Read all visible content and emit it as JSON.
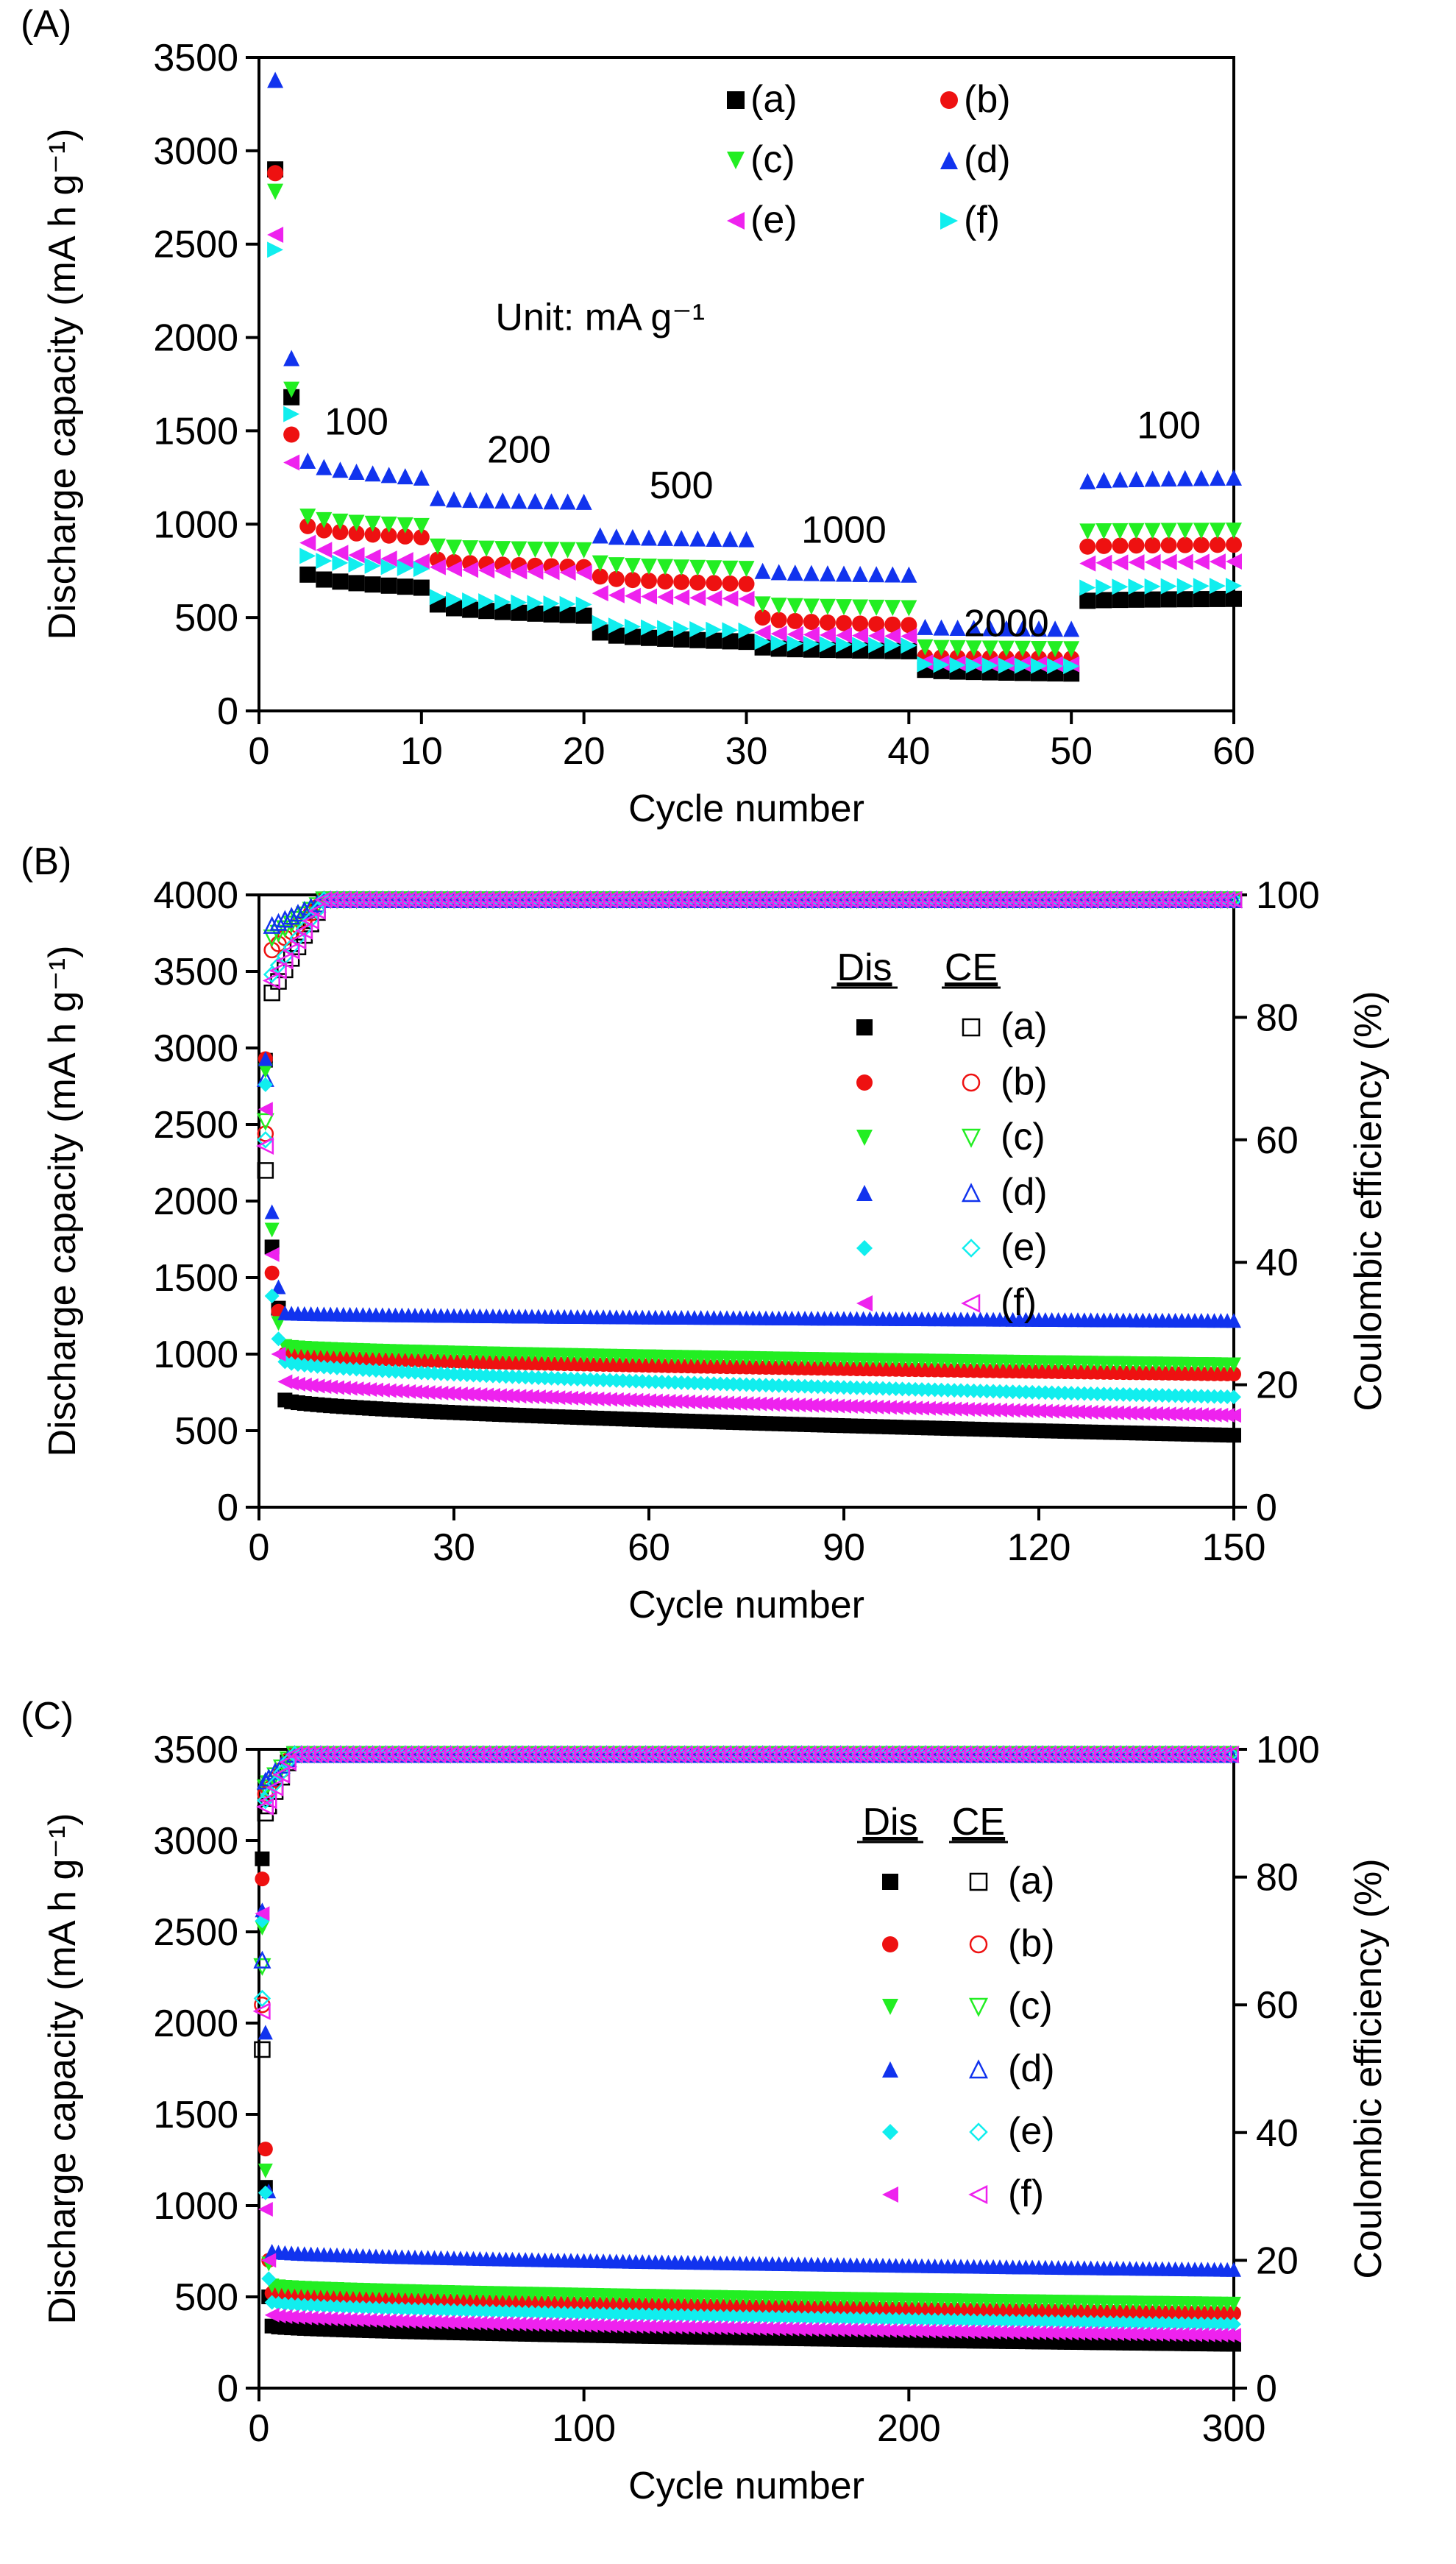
{
  "colors": {
    "a": "#000000",
    "b": "#ee1111",
    "c": "#22ee22",
    "d": "#1133ee",
    "e": "#11eeee",
    "f": "#ee22ee",
    "panelA_e": "#ee22ee",
    "panelA_f": "#11eeee"
  },
  "chart_data": [
    {
      "panel_label": "(A)",
      "type": "scatter",
      "xlabel": "Cycle number",
      "ylabel": "Discharge capacity (mA h g⁻¹)",
      "xlim": [
        0,
        60
      ],
      "ylim": [
        0,
        3500
      ],
      "xticks": [
        0,
        10,
        20,
        30,
        40,
        50,
        60
      ],
      "yticks": [
        0,
        500,
        1000,
        1500,
        2000,
        2500,
        3000,
        3500
      ],
      "legend_position": "top-right",
      "legend": [
        {
          "label": "(a)",
          "series": "a",
          "marker": "square"
        },
        {
          "label": "(b)",
          "series": "b",
          "marker": "circle"
        },
        {
          "label": "(c)",
          "series": "c",
          "marker": "triangle-down"
        },
        {
          "label": "(d)",
          "series": "d",
          "marker": "triangle-up"
        },
        {
          "label": "(e)",
          "series": "e",
          "marker": "triangle-left"
        },
        {
          "label": "(f)",
          "series": "f",
          "marker": "triangle-right"
        }
      ],
      "unit_annotation": "Unit: mA g⁻¹",
      "rate_labels": [
        {
          "text": "100",
          "x": 6,
          "y": 1480
        },
        {
          "text": "200",
          "x": 16,
          "y": 1330
        },
        {
          "text": "500",
          "x": 26,
          "y": 1140
        },
        {
          "text": "1000",
          "x": 36,
          "y": 900
        },
        {
          "text": "2000",
          "x": 46,
          "y": 400
        },
        {
          "text": "100",
          "x": 56,
          "y": 1460
        }
      ],
      "series": [
        {
          "key": "a",
          "marker": "square",
          "c1": 2900,
          "c2": 1680,
          "segments": [
            [
              3,
              10,
              730,
              660
            ],
            [
              11,
              20,
              570,
              510
            ],
            [
              21,
              30,
              420,
              370
            ],
            [
              31,
              40,
              340,
              320
            ],
            [
              41,
              50,
              220,
              200
            ],
            [
              51,
              60,
              590,
              600
            ]
          ]
        },
        {
          "key": "b",
          "marker": "circle",
          "c1": 2880,
          "c2": 1480,
          "segments": [
            [
              3,
              10,
              990,
              930
            ],
            [
              11,
              20,
              810,
              770
            ],
            [
              21,
              30,
              720,
              680
            ],
            [
              31,
              40,
              500,
              460
            ],
            [
              41,
              50,
              290,
              280
            ],
            [
              51,
              60,
              880,
              890
            ]
          ]
        },
        {
          "key": "c",
          "marker": "triangle-down",
          "c1": 2780,
          "c2": 1720,
          "segments": [
            [
              3,
              10,
              1040,
              990
            ],
            [
              11,
              20,
              880,
              860
            ],
            [
              21,
              30,
              790,
              760
            ],
            [
              31,
              40,
              570,
              550
            ],
            [
              41,
              50,
              340,
              330
            ],
            [
              51,
              60,
              960,
              965
            ]
          ]
        },
        {
          "key": "d",
          "marker": "triangle-up",
          "c1": 3380,
          "c2": 1890,
          "segments": [
            [
              3,
              10,
              1340,
              1250
            ],
            [
              11,
              20,
              1140,
              1120
            ],
            [
              21,
              30,
              940,
              920
            ],
            [
              31,
              40,
              750,
              730
            ],
            [
              41,
              50,
              450,
              440
            ],
            [
              51,
              60,
              1230,
              1250
            ]
          ]
        },
        {
          "key": "e",
          "marker": "triangle-left",
          "c1": 2550,
          "c2": 1330,
          "segments": [
            [
              3,
              10,
              900,
              800
            ],
            [
              11,
              20,
              770,
              740
            ],
            [
              21,
              30,
              630,
              600
            ],
            [
              31,
              40,
              420,
              400
            ],
            [
              41,
              50,
              260,
              250
            ],
            [
              51,
              60,
              790,
              800
            ]
          ]
        },
        {
          "key": "f",
          "marker": "triangle-right",
          "c1": 2470,
          "c2": 1590,
          "segments": [
            [
              3,
              10,
              830,
              760
            ],
            [
              11,
              20,
              610,
              570
            ],
            [
              21,
              30,
              470,
              430
            ],
            [
              31,
              40,
              370,
              350
            ],
            [
              41,
              50,
              250,
              240
            ],
            [
              51,
              60,
              660,
              670
            ]
          ]
        }
      ]
    },
    {
      "panel_label": "(B)",
      "type": "scatter",
      "xlabel": "Cycle number",
      "ylabel": "Discharge capacity (mA h g⁻¹)",
      "y2label": "Coulombic efficiency (%)",
      "xlim": [
        0,
        150
      ],
      "ylim": [
        0,
        4000
      ],
      "y2lim": [
        0,
        100
      ],
      "xticks": [
        0,
        30,
        60,
        90,
        120,
        150
      ],
      "yticks": [
        0,
        500,
        1000,
        1500,
        2000,
        2500,
        3000,
        3500,
        4000
      ],
      "y2ticks": [
        0,
        20,
        40,
        60,
        80,
        100
      ],
      "legend_position": "right",
      "legend_headers": [
        "Dis",
        "CE"
      ],
      "legend": [
        {
          "label": "(a)",
          "series": "a",
          "marker": "square"
        },
        {
          "label": "(b)",
          "series": "b",
          "marker": "circle"
        },
        {
          "label": "(c)",
          "series": "c",
          "marker": "triangle-down"
        },
        {
          "label": "(d)",
          "series": "d",
          "marker": "triangle-up"
        },
        {
          "label": "(e)",
          "series": "e",
          "marker": "diamond"
        },
        {
          "label": "(f)",
          "series": "f",
          "marker": "triangle-left"
        }
      ],
      "series": [
        {
          "key": "a",
          "marker": "square",
          "c1": 2920,
          "c2": 1700,
          "c3": 1300,
          "plateau": [
            700,
            470
          ],
          "ce1": 55,
          "ce2": 84
        },
        {
          "key": "b",
          "marker": "circle",
          "c1": 2930,
          "c2": 1530,
          "c3": 1280,
          "plateau": [
            1000,
            870
          ],
          "ce1": 61,
          "ce2": 91
        },
        {
          "key": "c",
          "marker": "triangle-down",
          "c1": 2850,
          "c2": 1810,
          "c3": 1200,
          "plateau": [
            1050,
            930
          ],
          "ce1": 63,
          "ce2": 93
        },
        {
          "key": "d",
          "marker": "triangle-up",
          "c1": 2930,
          "c2": 1930,
          "c3": 1440,
          "plateau": [
            1270,
            1220
          ],
          "ce1": 70,
          "ce2": 95
        },
        {
          "key": "e",
          "marker": "diamond",
          "c1": 2760,
          "c2": 1380,
          "c3": 1100,
          "plateau": [
            950,
            720
          ],
          "ce1": 60,
          "ce2": 87
        },
        {
          "key": "f",
          "marker": "triangle-left",
          "c1": 2600,
          "c2": 1650,
          "c3": 1000,
          "plateau": [
            820,
            600
          ],
          "ce1": 59,
          "ce2": 86
        }
      ]
    },
    {
      "panel_label": "(C)",
      "type": "scatter",
      "xlabel": "Cycle number",
      "ylabel": "Discharge capacity (mA h g⁻¹)",
      "y2label": "Coulombic efficiency (%)",
      "xlim": [
        0,
        300
      ],
      "ylim": [
        0,
        3500
      ],
      "y2lim": [
        0,
        100
      ],
      "xticks": [
        0,
        100,
        200,
        300
      ],
      "yticks": [
        0,
        500,
        1000,
        1500,
        2000,
        2500,
        3000,
        3500
      ],
      "y2ticks": [
        0,
        20,
        40,
        60,
        80,
        100
      ],
      "legend_position": "right",
      "legend_headers": [
        "Dis",
        "CE"
      ],
      "legend": [
        {
          "label": "(a)",
          "series": "a",
          "marker": "square"
        },
        {
          "label": "(b)",
          "series": "b",
          "marker": "circle"
        },
        {
          "label": "(c)",
          "series": "c",
          "marker": "triangle-down"
        },
        {
          "label": "(d)",
          "series": "d",
          "marker": "triangle-up"
        },
        {
          "label": "(e)",
          "series": "e",
          "marker": "diamond"
        },
        {
          "label": "(f)",
          "series": "f",
          "marker": "triangle-left"
        }
      ],
      "series": [
        {
          "key": "a",
          "marker": "square",
          "c1": 2900,
          "c2": 1100,
          "c3": 500,
          "plateau": [
            340,
            240
          ],
          "ce1": 53,
          "ce2": 90
        },
        {
          "key": "b",
          "marker": "circle",
          "c1": 2790,
          "c2": 1310,
          "c3": 700,
          "plateau": [
            520,
            410
          ],
          "ce1": 60,
          "ce2": 93
        },
        {
          "key": "c",
          "marker": "triangle-down",
          "c1": 2520,
          "c2": 1190,
          "c3": 680,
          "plateau": [
            560,
            460
          ],
          "ce1": 66,
          "ce2": 94
        },
        {
          "key": "d",
          "marker": "triangle-up",
          "c1": 2620,
          "c2": 1950,
          "c3": 1080,
          "plateau": [
            750,
            650
          ],
          "ce1": 67,
          "ce2": 95
        },
        {
          "key": "e",
          "marker": "diamond",
          "c1": 2560,
          "c2": 1070,
          "c3": 600,
          "plateau": [
            470,
            350
          ],
          "ce1": 61,
          "ce2": 92
        },
        {
          "key": "f",
          "marker": "triangle-left",
          "c1": 2600,
          "c2": 980,
          "c3": 700,
          "plateau": [
            400,
            290
          ],
          "ce1": 59,
          "ce2": 91
        }
      ]
    }
  ]
}
